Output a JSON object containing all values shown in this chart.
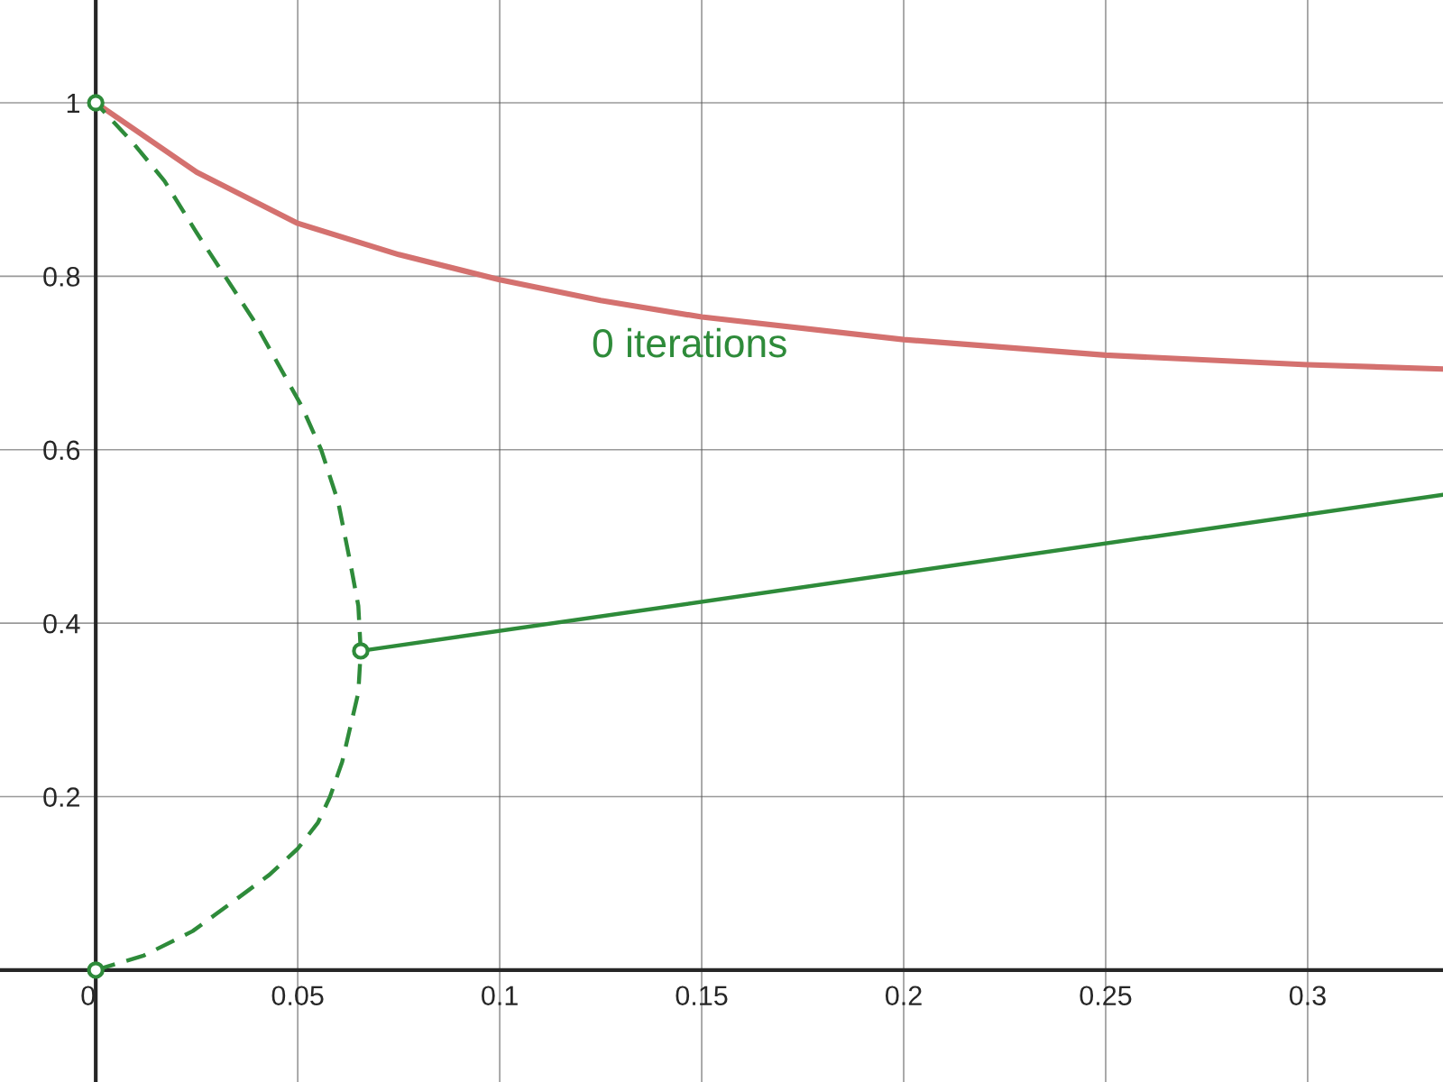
{
  "chart_data": {
    "type": "line",
    "xlim": [
      -0.0237,
      0.3335
    ],
    "ylim": [
      -0.129,
      1.1185
    ],
    "xticks": [
      0,
      0.05,
      0.1,
      0.15,
      0.2,
      0.25,
      0.3
    ],
    "yticks": [
      {
        "value": 0,
        "label": null
      },
      0.2,
      0.4,
      0.6,
      0.8,
      1
    ],
    "grid": true,
    "legend": false,
    "series": [
      {
        "type": "line",
        "color": "#d4716f",
        "line_style": "solid",
        "x": [
          0,
          0.025,
          0.05,
          0.075,
          0.1,
          0.125,
          0.15,
          0.2,
          0.25,
          0.3,
          0.3335
        ],
        "values": [
          1,
          0.92,
          0.861,
          0.825,
          0.796,
          0.772,
          0.753,
          0.727,
          0.709,
          0.698,
          0.693
        ]
      },
      {
        "type": "line",
        "color": "#2e8b3a",
        "line_style": "dashed",
        "x": [
          0,
          0.012,
          0.024,
          0.034,
          0.043,
          0.05,
          0.055,
          0.058,
          0.061,
          0.063,
          0.065,
          0.0656,
          0.065,
          0.063,
          0.06,
          0.0558,
          0.051,
          0.045,
          0.039,
          0.032,
          0.025,
          0.017,
          0.009,
          0
        ],
        "values": [
          0,
          0.017,
          0.045,
          0.079,
          0.11,
          0.14,
          0.17,
          0.2,
          0.24,
          0.28,
          0.32,
          0.368,
          0.42,
          0.47,
          0.54,
          0.6,
          0.65,
          0.7,
          0.75,
          0.8,
          0.85,
          0.91,
          0.955,
          1
        ]
      },
      {
        "type": "line",
        "color": "#2e8b3a",
        "line_style": "solid",
        "x": [
          0.0656,
          0.3335
        ],
        "values": [
          0.368,
          0.548
        ]
      },
      {
        "type": "scatter",
        "color": "#2e8b3a",
        "marker": "circle",
        "x": [
          0,
          0.0656,
          0
        ],
        "values": [
          1,
          0.368,
          0
        ]
      }
    ],
    "annotations": [
      "0 iterations"
    ]
  }
}
